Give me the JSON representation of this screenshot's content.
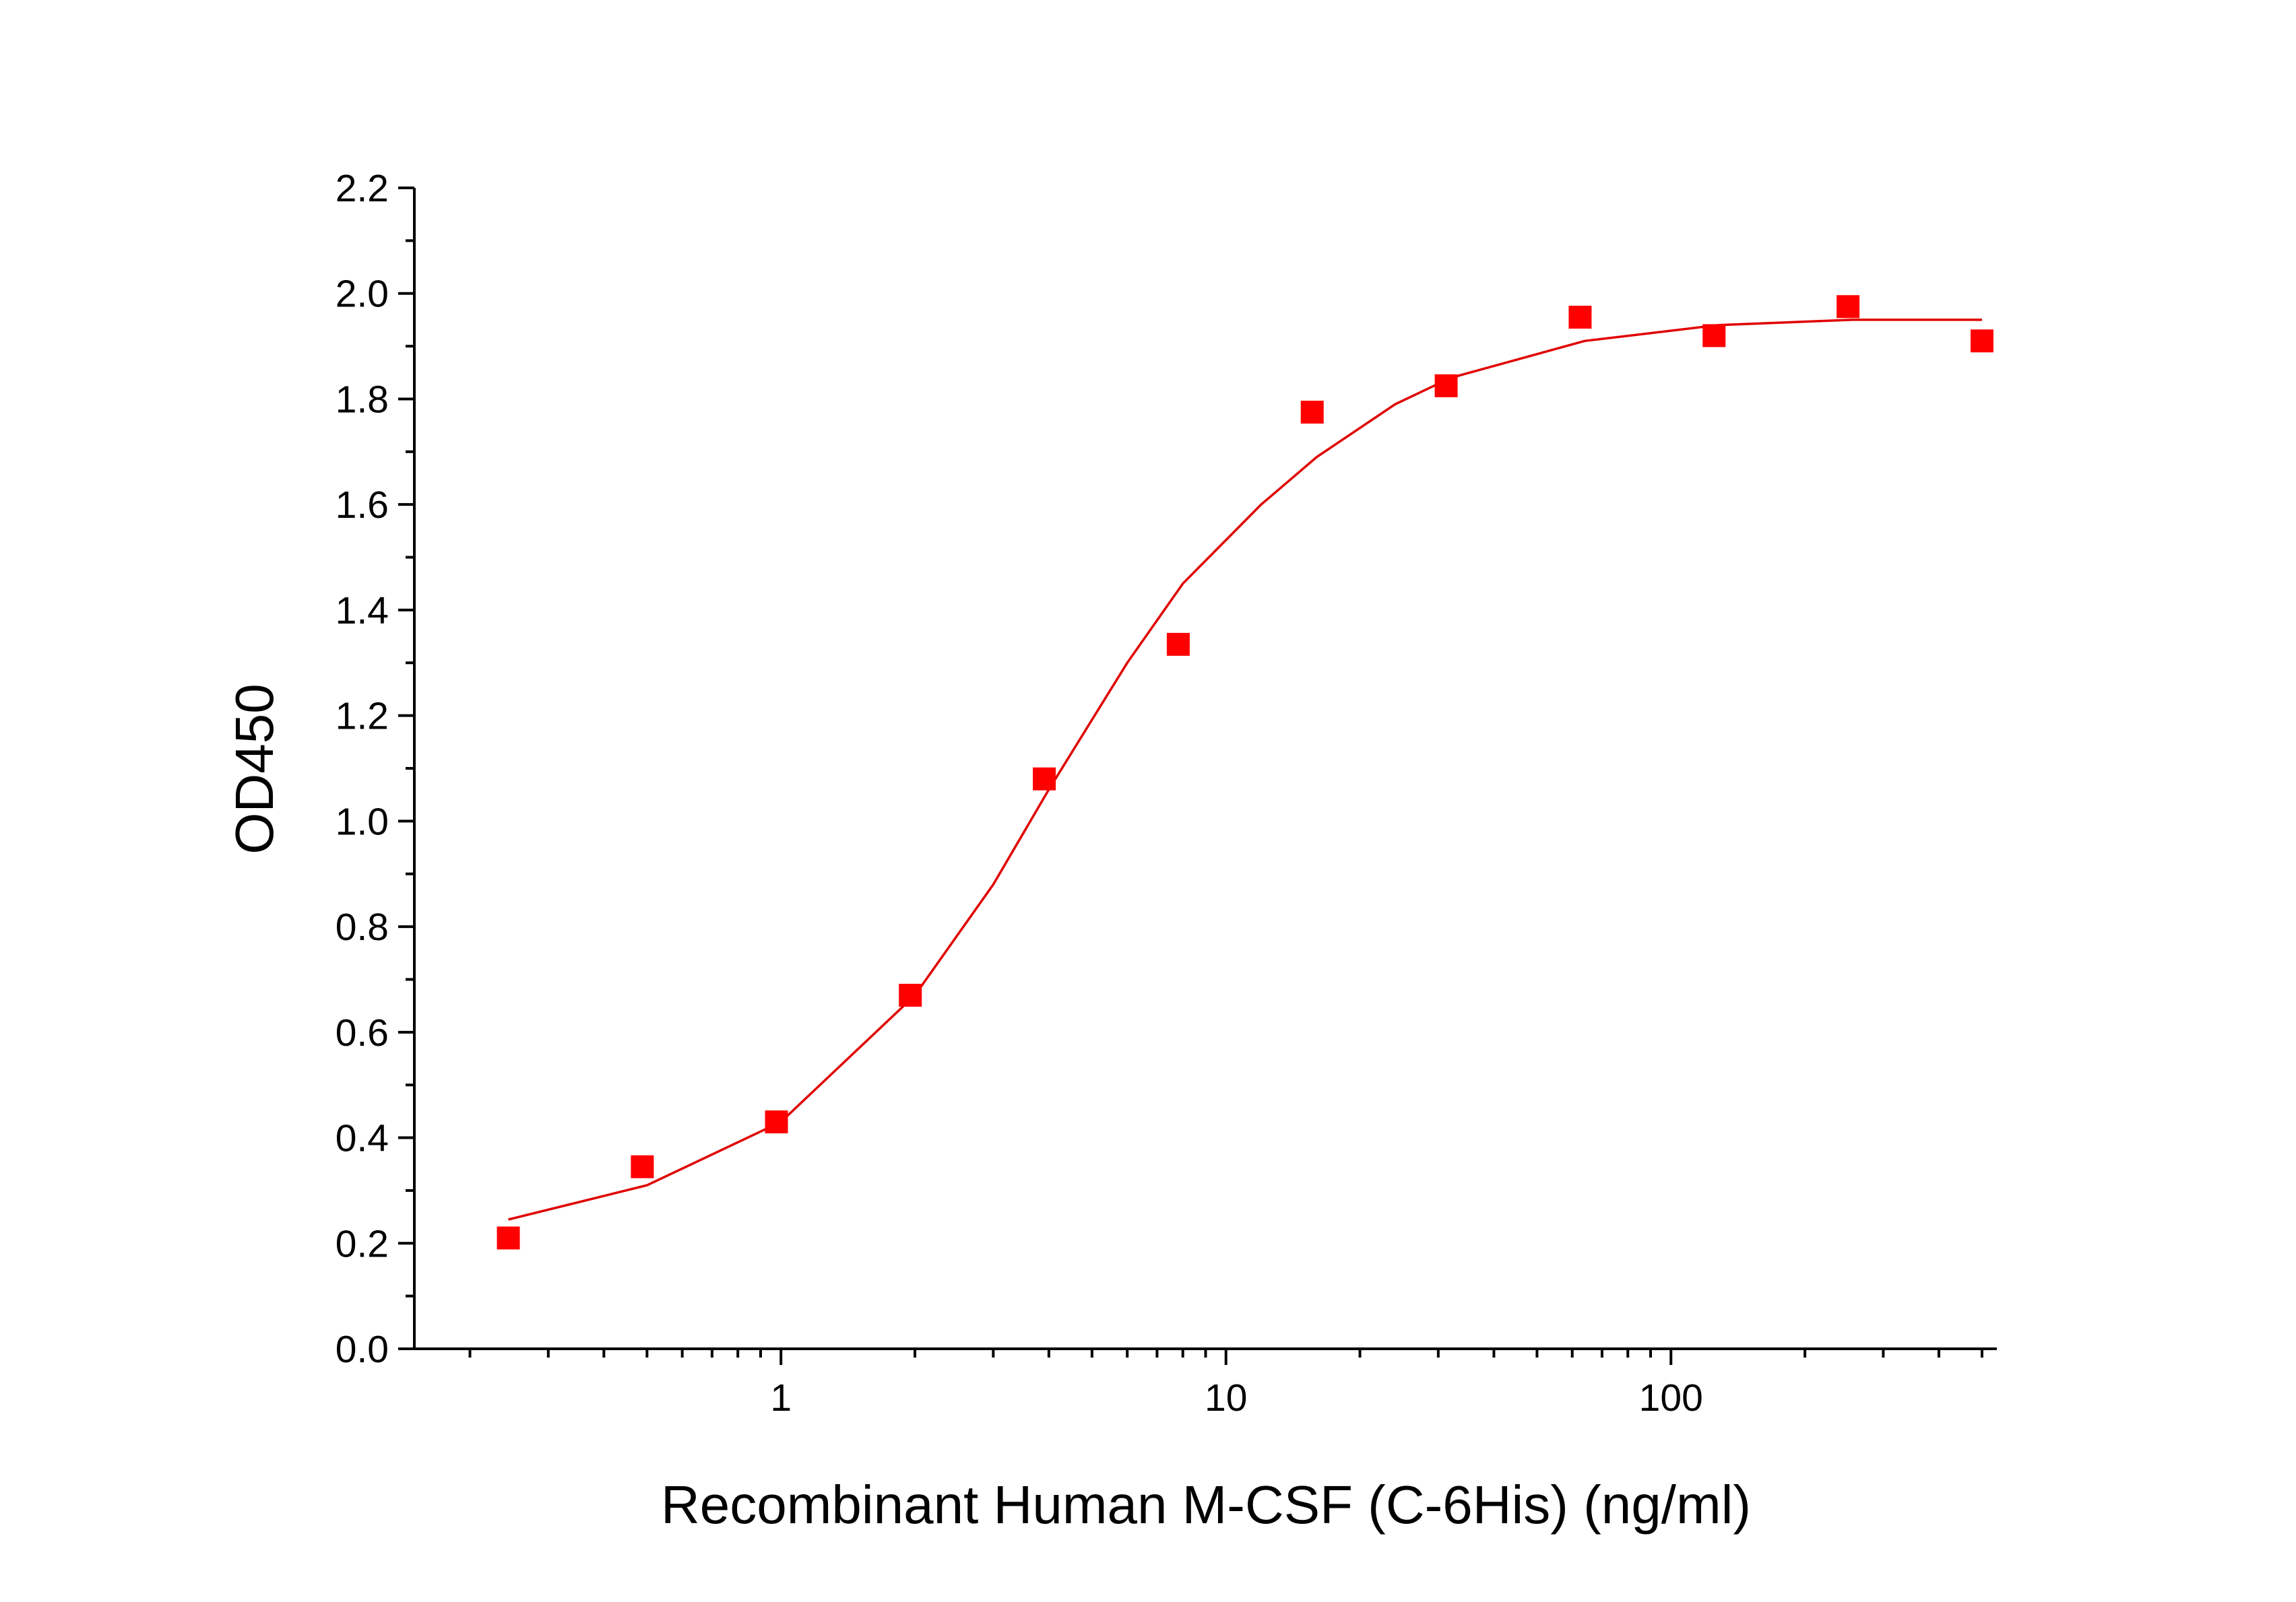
{
  "chart_data": {
    "type": "scatter",
    "x_label": "Recombinant Human M-CSF (C-6His) (ng/ml)",
    "y_label": "OD450",
    "x_scale": "log",
    "xlim": [
      0.15,
      540
    ],
    "ylim": [
      0,
      2.2
    ],
    "xticks": [
      1,
      10,
      100
    ],
    "xminorticks": [
      0.2,
      0.3,
      0.4,
      0.5,
      0.6,
      0.7,
      0.8,
      0.9,
      2,
      3,
      4,
      5,
      6,
      7,
      8,
      9,
      20,
      30,
      40,
      50,
      60,
      70,
      80,
      90,
      200,
      300,
      400,
      500
    ],
    "yticks": [
      {
        "value": 0,
        "label": "0.0"
      },
      {
        "value": 0.2,
        "label": "0.2"
      },
      {
        "value": 0.4,
        "label": "0.4"
      },
      {
        "value": 0.6,
        "label": "0.6"
      },
      {
        "value": 0.8,
        "label": "0.8"
      },
      {
        "value": 1,
        "label": "1.0"
      },
      {
        "value": 1.2,
        "label": "1.2"
      },
      {
        "value": 1.4,
        "label": "1.4"
      },
      {
        "value": 1.6,
        "label": "1.6"
      },
      {
        "value": 1.8,
        "label": "1.8"
      },
      {
        "value": 2,
        "label": "2.0"
      },
      {
        "value": 2.2,
        "label": "2.2"
      }
    ],
    "yminorticks": [
      0.1,
      0.3,
      0.5,
      0.7,
      0.9,
      1.1,
      1.3,
      1.5,
      1.7,
      1.9,
      2.1
    ],
    "series": [
      {
        "type": "scatter",
        "color": "#ff0000",
        "x": [
          0.244,
          0.488,
          0.977,
          1.953,
          3.906,
          7.8125,
          15.625,
          31.25,
          62.5,
          125,
          250,
          500
        ],
        "values": [
          0.21,
          0.345,
          0.43,
          0.67,
          1.08,
          1.335,
          1.775,
          1.825,
          1.955,
          1.92,
          1.975,
          1.91
        ]
      },
      {
        "type": "line",
        "color": "#e00000",
        "x": [
          0.244,
          0.5,
          1,
          2,
          3,
          4,
          6,
          8,
          12,
          16,
          24,
          32,
          64,
          128,
          256,
          500
        ],
        "values": [
          0.245,
          0.31,
          0.43,
          0.67,
          0.88,
          1.06,
          1.3,
          1.45,
          1.6,
          1.69,
          1.79,
          1.84,
          1.91,
          1.94,
          1.95,
          1.95
        ]
      }
    ]
  }
}
